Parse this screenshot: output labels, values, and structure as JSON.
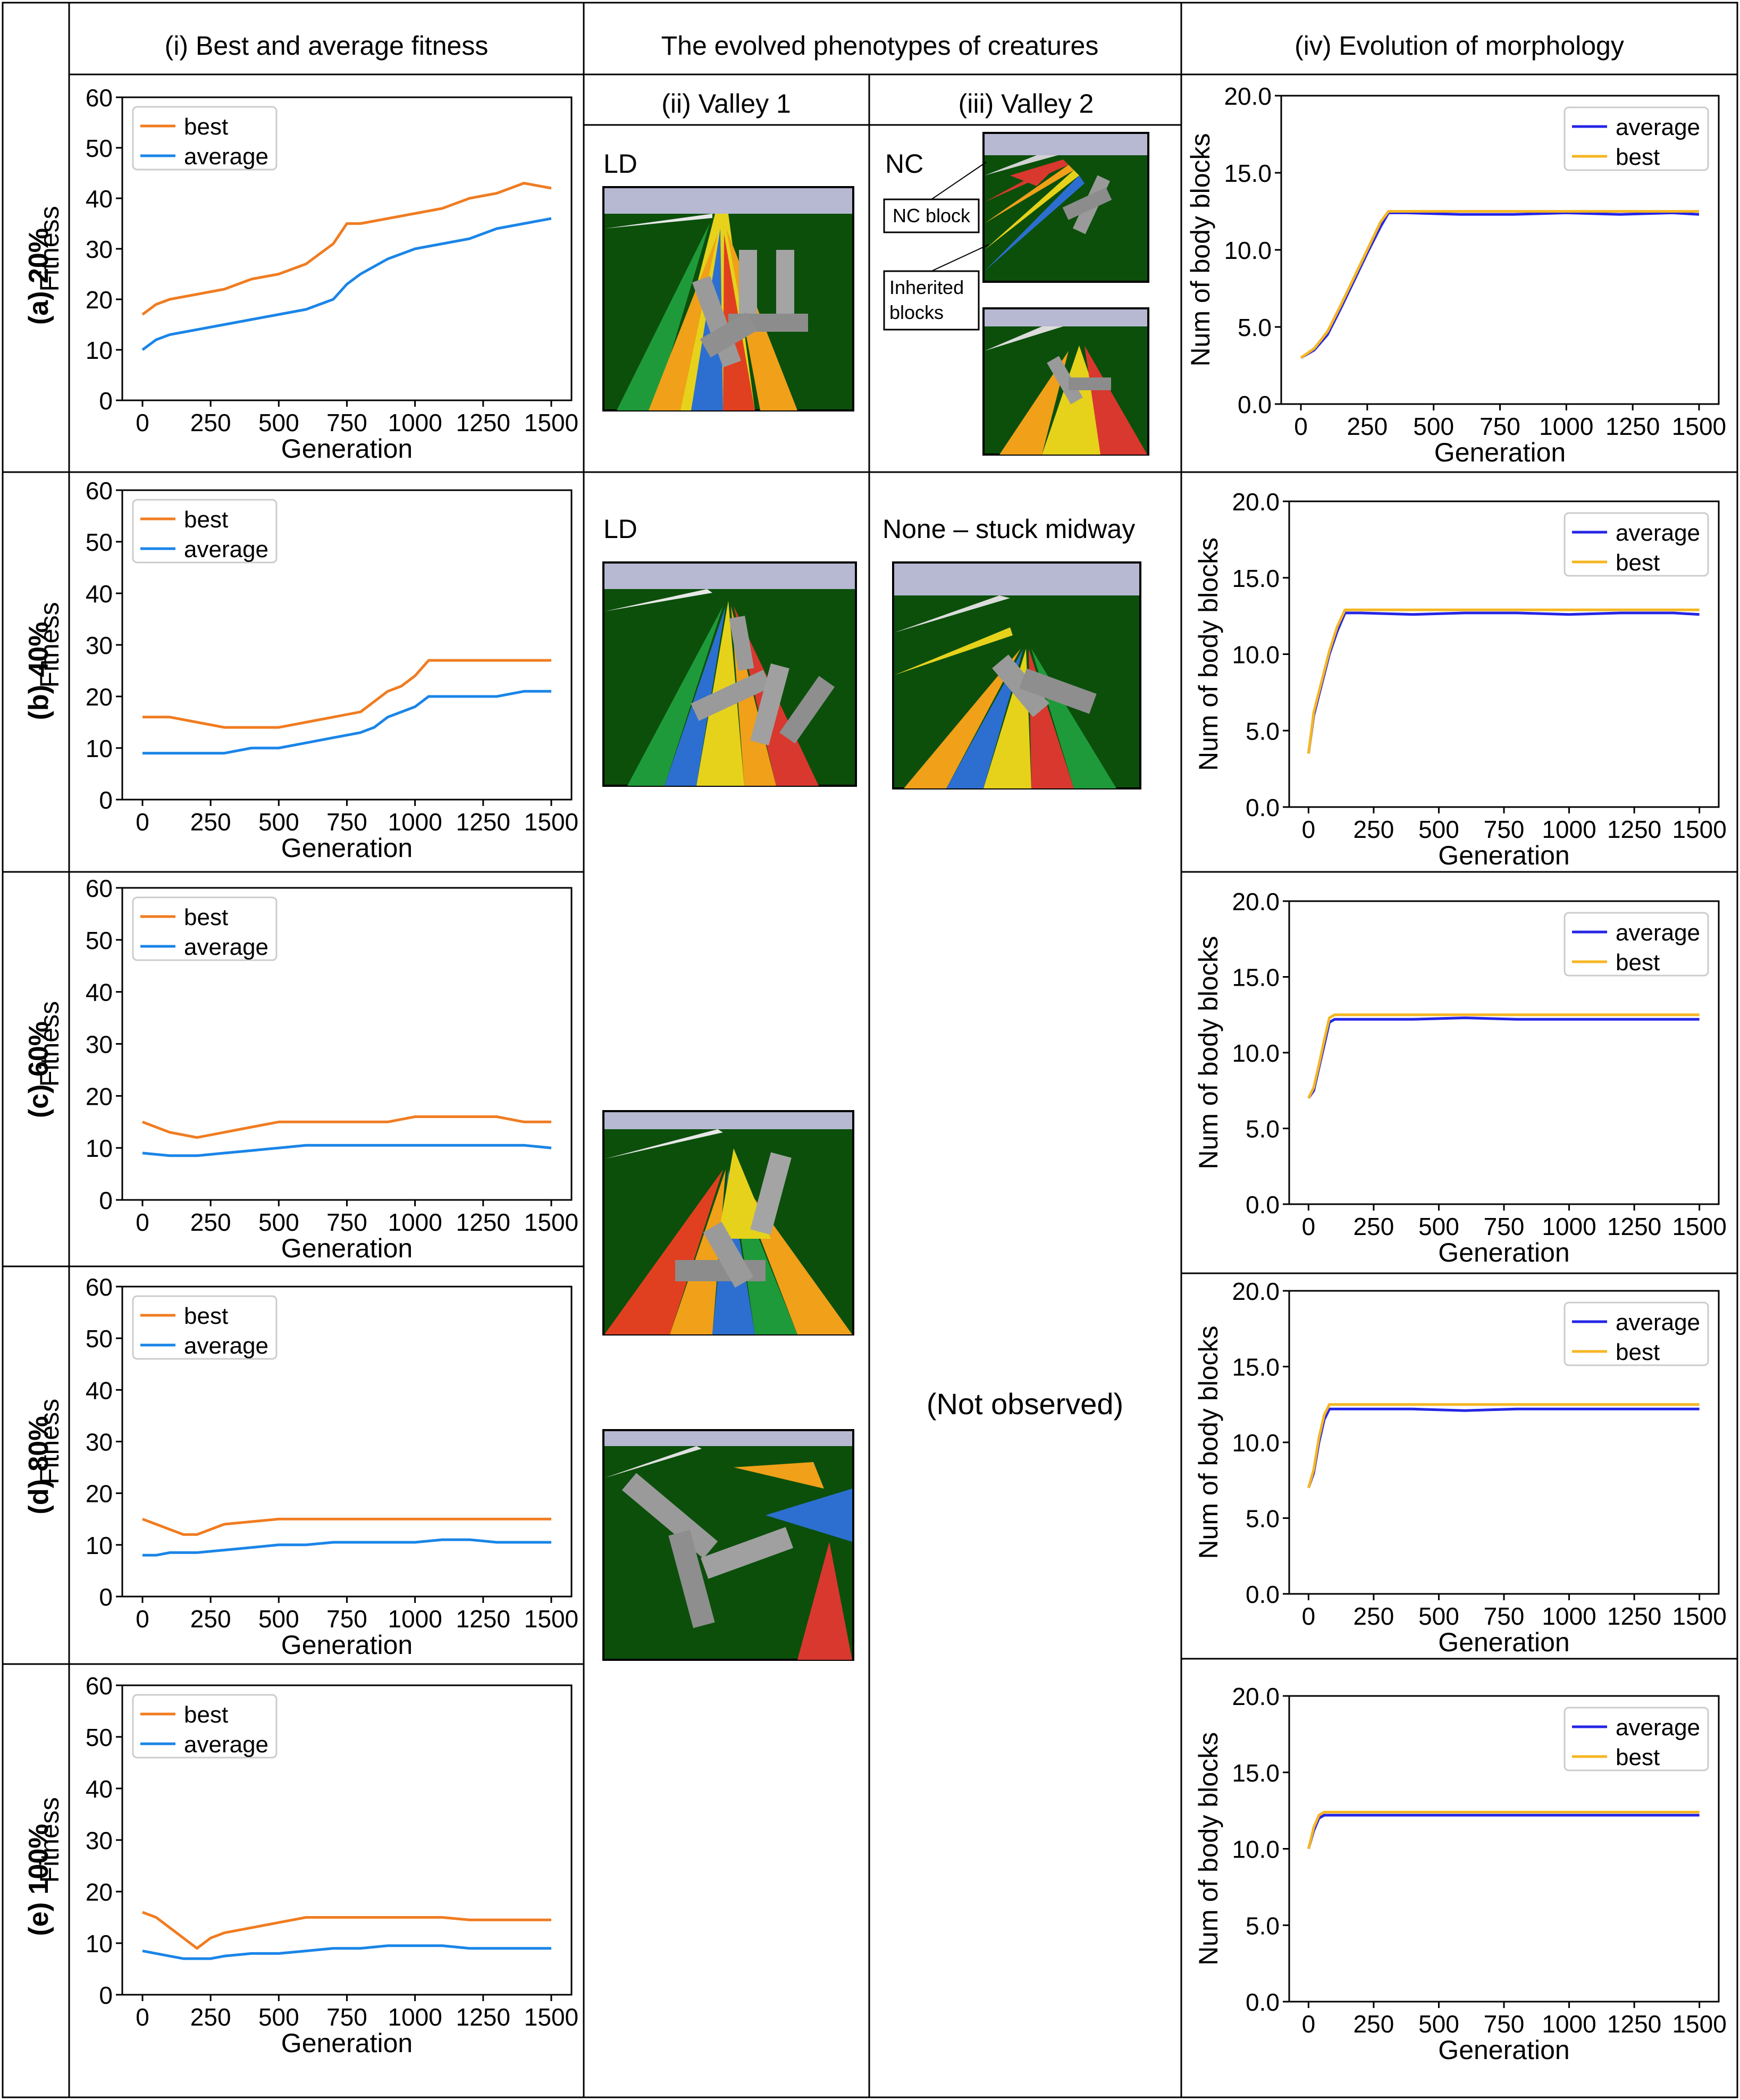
{
  "headers": {
    "col1": "(i) Best and average fitness",
    "col2": "The evolved phenotypes of creatures",
    "col2a": "(ii) Valley 1",
    "col2b": "(iii) Valley 2",
    "col3": "(iv) Evolution of morphology"
  },
  "rows": [
    {
      "label": "(a) 20%"
    },
    {
      "label": "(b) 40%"
    },
    {
      "label": "(c) 60%"
    },
    {
      "label": "(d) 80%"
    },
    {
      "label": "(e) 100%"
    }
  ],
  "annotations": {
    "a_valley1": "LD",
    "a_valley2": "NC",
    "nc_block": "NC block",
    "inherited_1": "Inherited",
    "inherited_2": "blocks",
    "b_valley1": "LD",
    "b_valley2": "None – stuck midway",
    "not_observed": "(Not observed)"
  },
  "chart_data": [
    {
      "type": "line",
      "id": "fit-a",
      "xlabel": "Generation",
      "ylabel": "Fitness",
      "ylim": [
        0,
        60
      ],
      "yticks": [
        "0",
        "10",
        "20",
        "30",
        "40",
        "50",
        "60"
      ],
      "xticks": [
        "0",
        "250",
        "500",
        "750",
        "1000",
        "1250",
        "1500"
      ],
      "legend": "top-left",
      "series": [
        {
          "name": "best",
          "color": "#f07c21",
          "x": [
            0,
            50,
            100,
            200,
            300,
            400,
            500,
            600,
            700,
            750,
            800,
            900,
            1000,
            1100,
            1200,
            1300,
            1400,
            1500
          ],
          "y": [
            17,
            19,
            20,
            21,
            22,
            24,
            25,
            27,
            31,
            35,
            35,
            36,
            37,
            38,
            40,
            41,
            43,
            42
          ]
        },
        {
          "name": "average",
          "color": "#1a85e8",
          "x": [
            0,
            50,
            100,
            200,
            300,
            400,
            500,
            600,
            700,
            750,
            800,
            900,
            1000,
            1100,
            1200,
            1300,
            1400,
            1500
          ],
          "y": [
            10,
            12,
            13,
            14,
            15,
            16,
            17,
            18,
            20,
            23,
            25,
            28,
            30,
            31,
            32,
            34,
            35,
            36
          ]
        }
      ]
    },
    {
      "type": "line",
      "id": "fit-b",
      "xlabel": "Generation",
      "ylabel": "Fitness",
      "ylim": [
        0,
        60
      ],
      "yticks": [
        "0",
        "10",
        "20",
        "30",
        "40",
        "50",
        "60"
      ],
      "xticks": [
        "0",
        "250",
        "500",
        "750",
        "1000",
        "1250",
        "1500"
      ],
      "legend": "top-left",
      "series": [
        {
          "name": "best",
          "color": "#f07c21",
          "x": [
            0,
            100,
            200,
            300,
            400,
            500,
            600,
            700,
            800,
            850,
            900,
            950,
            1000,
            1050,
            1100,
            1200,
            1300,
            1400,
            1500
          ],
          "y": [
            16,
            16,
            15,
            14,
            14,
            14,
            15,
            16,
            17,
            19,
            21,
            22,
            24,
            27,
            27,
            27,
            27,
            27,
            27
          ]
        },
        {
          "name": "average",
          "color": "#1a85e8",
          "x": [
            0,
            100,
            200,
            300,
            400,
            500,
            600,
            700,
            800,
            850,
            900,
            950,
            1000,
            1050,
            1100,
            1200,
            1300,
            1400,
            1500
          ],
          "y": [
            9,
            9,
            9,
            9,
            10,
            10,
            11,
            12,
            13,
            14,
            16,
            17,
            18,
            20,
            20,
            20,
            20,
            21,
            21
          ]
        }
      ]
    },
    {
      "type": "line",
      "id": "fit-c",
      "xlabel": "Generation",
      "ylabel": "Fitness",
      "ylim": [
        0,
        60
      ],
      "yticks": [
        "0",
        "10",
        "20",
        "30",
        "40",
        "50",
        "60"
      ],
      "xticks": [
        "0",
        "250",
        "500",
        "750",
        "1000",
        "1250",
        "1500"
      ],
      "legend": "top-left",
      "series": [
        {
          "name": "best",
          "color": "#f07c21",
          "x": [
            0,
            100,
            200,
            300,
            400,
            500,
            600,
            700,
            800,
            900,
            1000,
            1100,
            1200,
            1300,
            1400,
            1500
          ],
          "y": [
            15,
            13,
            12,
            13,
            14,
            15,
            15,
            15,
            15,
            15,
            16,
            16,
            16,
            16,
            15,
            15
          ]
        },
        {
          "name": "average",
          "color": "#1a85e8",
          "x": [
            0,
            100,
            200,
            300,
            400,
            500,
            600,
            700,
            800,
            900,
            1000,
            1100,
            1200,
            1300,
            1400,
            1500
          ],
          "y": [
            9,
            8.5,
            8.5,
            9,
            9.5,
            10,
            10.5,
            10.5,
            10.5,
            10.5,
            10.5,
            10.5,
            10.5,
            10.5,
            10.5,
            10
          ]
        }
      ]
    },
    {
      "type": "line",
      "id": "fit-d",
      "xlabel": "Generation",
      "ylabel": "Fitness",
      "ylim": [
        0,
        60
      ],
      "yticks": [
        "0",
        "10",
        "20",
        "30",
        "40",
        "50",
        "60"
      ],
      "xticks": [
        "0",
        "250",
        "500",
        "750",
        "1000",
        "1250",
        "1500"
      ],
      "legend": "top-left",
      "series": [
        {
          "name": "best",
          "color": "#f07c21",
          "x": [
            0,
            50,
            100,
            150,
            200,
            300,
            400,
            500,
            600,
            700,
            800,
            900,
            1000,
            1100,
            1200,
            1300,
            1400,
            1500
          ],
          "y": [
            15,
            14,
            13,
            12,
            12,
            14,
            14.5,
            15,
            15,
            15,
            15,
            15,
            15,
            15,
            15,
            15,
            15,
            15
          ]
        },
        {
          "name": "average",
          "color": "#1a85e8",
          "x": [
            0,
            50,
            100,
            150,
            200,
            300,
            400,
            500,
            600,
            700,
            800,
            900,
            1000,
            1100,
            1200,
            1300,
            1400,
            1500
          ],
          "y": [
            8,
            8,
            8.5,
            8.5,
            8.5,
            9,
            9.5,
            10,
            10,
            10.5,
            10.5,
            10.5,
            10.5,
            11,
            11,
            10.5,
            10.5,
            10.5
          ]
        }
      ]
    },
    {
      "type": "line",
      "id": "fit-e",
      "xlabel": "Generation",
      "ylabel": "Fitness",
      "ylim": [
        0,
        60
      ],
      "yticks": [
        "0",
        "10",
        "20",
        "30",
        "40",
        "50",
        "60"
      ],
      "xticks": [
        "0",
        "250",
        "500",
        "750",
        "1000",
        "1250",
        "1500"
      ],
      "legend": "top-left",
      "series": [
        {
          "name": "best",
          "color": "#f07c21",
          "x": [
            0,
            50,
            100,
            150,
            200,
            250,
            300,
            400,
            500,
            600,
            700,
            800,
            900,
            1000,
            1100,
            1200,
            1300,
            1400,
            1500
          ],
          "y": [
            16,
            15,
            13,
            11,
            9,
            11,
            12,
            13,
            14,
            15,
            15,
            15,
            15,
            15,
            15,
            14.5,
            14.5,
            14.5,
            14.5
          ]
        },
        {
          "name": "average",
          "color": "#1a85e8",
          "x": [
            0,
            50,
            100,
            150,
            200,
            250,
            300,
            400,
            500,
            600,
            700,
            800,
            900,
            1000,
            1100,
            1200,
            1300,
            1400,
            1500
          ],
          "y": [
            8.5,
            8,
            7.5,
            7,
            7,
            7,
            7.5,
            8,
            8,
            8.5,
            9,
            9,
            9.5,
            9.5,
            9.5,
            9,
            9,
            9,
            9
          ]
        }
      ]
    },
    {
      "type": "line",
      "id": "morph-a",
      "xlabel": "Generation",
      "ylabel": "Num of body blocks",
      "ylim": [
        0,
        20
      ],
      "yticks": [
        "0.0",
        "5.0",
        "10.0",
        "15.0",
        "20.0"
      ],
      "xticks": [
        "0",
        "250",
        "500",
        "750",
        "1000",
        "1250",
        "1500"
      ],
      "legend": "top-right",
      "series": [
        {
          "name": "average",
          "color": "#2525e6",
          "x": [
            0,
            50,
            100,
            150,
            200,
            250,
            300,
            330,
            400,
            600,
            800,
            1000,
            1200,
            1400,
            1500
          ],
          "y": [
            3,
            3.5,
            4.5,
            6.2,
            8,
            9.8,
            11.5,
            12.4,
            12.4,
            12.3,
            12.3,
            12.4,
            12.3,
            12.4,
            12.3
          ]
        },
        {
          "name": "best",
          "color": "#f5b622",
          "x": [
            0,
            50,
            100,
            150,
            200,
            250,
            300,
            330,
            400,
            600,
            800,
            1000,
            1200,
            1400,
            1500
          ],
          "y": [
            3,
            3.6,
            4.7,
            6.4,
            8.2,
            10,
            11.8,
            12.5,
            12.5,
            12.5,
            12.5,
            12.5,
            12.5,
            12.5,
            12.5
          ]
        }
      ]
    },
    {
      "type": "line",
      "id": "morph-b",
      "xlabel": "Generation",
      "ylabel": "Num of body blocks",
      "ylim": [
        0,
        20
      ],
      "yticks": [
        "0.0",
        "5.0",
        "10.0",
        "15.0",
        "20.0"
      ],
      "xticks": [
        "0",
        "250",
        "500",
        "750",
        "1000",
        "1250",
        "1500"
      ],
      "legend": "top-right",
      "series": [
        {
          "name": "average",
          "color": "#2525e6",
          "x": [
            0,
            20,
            50,
            80,
            110,
            140,
            200,
            400,
            600,
            800,
            1000,
            1200,
            1400,
            1500
          ],
          "y": [
            3.5,
            6,
            8,
            10,
            11.5,
            12.7,
            12.7,
            12.6,
            12.7,
            12.7,
            12.6,
            12.7,
            12.7,
            12.6
          ]
        },
        {
          "name": "best",
          "color": "#f5b622",
          "x": [
            0,
            20,
            50,
            80,
            110,
            140,
            200,
            400,
            600,
            800,
            1000,
            1200,
            1400,
            1500
          ],
          "y": [
            3.5,
            6.2,
            8.2,
            10.2,
            11.8,
            12.9,
            12.9,
            12.9,
            12.9,
            12.9,
            12.9,
            12.9,
            12.9,
            12.9
          ]
        }
      ]
    },
    {
      "type": "line",
      "id": "morph-c",
      "xlabel": "Generation",
      "ylabel": "Num of body blocks",
      "ylim": [
        0,
        20
      ],
      "yticks": [
        "0.0",
        "5.0",
        "10.0",
        "15.0",
        "20.0"
      ],
      "xticks": [
        "0",
        "250",
        "500",
        "750",
        "1000",
        "1250",
        "1500"
      ],
      "legend": "top-right",
      "series": [
        {
          "name": "average",
          "color": "#2525e6",
          "x": [
            0,
            20,
            40,
            60,
            80,
            100,
            200,
            400,
            600,
            800,
            1000,
            1200,
            1400,
            1500
          ],
          "y": [
            7,
            7.5,
            9,
            10.5,
            12,
            12.2,
            12.2,
            12.2,
            12.3,
            12.2,
            12.2,
            12.2,
            12.2,
            12.2
          ]
        },
        {
          "name": "best",
          "color": "#f5b622",
          "x": [
            0,
            20,
            40,
            60,
            80,
            100,
            200,
            400,
            600,
            800,
            1000,
            1200,
            1400,
            1500
          ],
          "y": [
            7,
            7.7,
            9.2,
            10.8,
            12.3,
            12.5,
            12.5,
            12.5,
            12.5,
            12.5,
            12.5,
            12.5,
            12.5,
            12.5
          ]
        }
      ]
    },
    {
      "type": "line",
      "id": "morph-d",
      "xlabel": "Generation",
      "ylabel": "Num of body blocks",
      "ylim": [
        0,
        20
      ],
      "yticks": [
        "0.0",
        "5.0",
        "10.0",
        "15.0",
        "20.0"
      ],
      "xticks": [
        "0",
        "250",
        "500",
        "750",
        "1000",
        "1250",
        "1500"
      ],
      "legend": "top-right",
      "series": [
        {
          "name": "average",
          "color": "#2525e6",
          "x": [
            0,
            20,
            40,
            60,
            80,
            200,
            400,
            600,
            800,
            1000,
            1200,
            1400,
            1500
          ],
          "y": [
            7,
            8,
            10,
            11.5,
            12.2,
            12.2,
            12.2,
            12.1,
            12.2,
            12.2,
            12.2,
            12.2,
            12.2
          ]
        },
        {
          "name": "best",
          "color": "#f5b622",
          "x": [
            0,
            20,
            40,
            60,
            80,
            200,
            400,
            600,
            800,
            1000,
            1200,
            1400,
            1500
          ],
          "y": [
            7,
            8.2,
            10.3,
            11.8,
            12.5,
            12.5,
            12.5,
            12.5,
            12.5,
            12.5,
            12.5,
            12.5,
            12.5
          ]
        }
      ]
    },
    {
      "type": "line",
      "id": "morph-e",
      "xlabel": "Generation",
      "ylabel": "Num of body blocks",
      "ylim": [
        0,
        20
      ],
      "yticks": [
        "0.0",
        "5.0",
        "10.0",
        "15.0",
        "20.0"
      ],
      "xticks": [
        "0",
        "250",
        "500",
        "750",
        "1000",
        "1250",
        "1500"
      ],
      "legend": "top-right",
      "series": [
        {
          "name": "average",
          "color": "#2525e6",
          "x": [
            0,
            20,
            40,
            60,
            200,
            400,
            600,
            800,
            1000,
            1200,
            1400,
            1500
          ],
          "y": [
            10,
            11.2,
            12,
            12.2,
            12.2,
            12.2,
            12.2,
            12.2,
            12.2,
            12.2,
            12.2,
            12.2
          ]
        },
        {
          "name": "best",
          "color": "#f5b622",
          "x": [
            0,
            20,
            40,
            60,
            200,
            400,
            600,
            800,
            1000,
            1200,
            1400,
            1500
          ],
          "y": [
            10,
            11.4,
            12.2,
            12.4,
            12.4,
            12.4,
            12.4,
            12.4,
            12.4,
            12.4,
            12.4,
            12.4
          ]
        }
      ]
    }
  ]
}
